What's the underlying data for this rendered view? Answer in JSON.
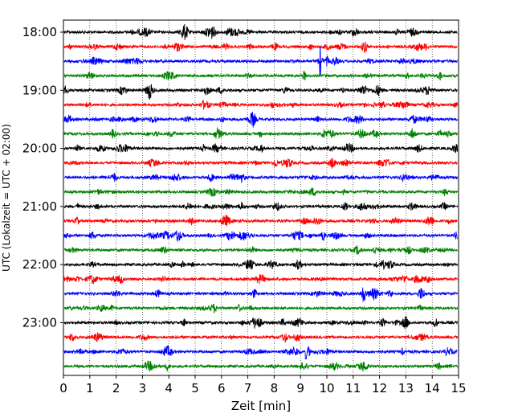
{
  "chart_data": {
    "type": "line",
    "title": "",
    "xlabel": "Zeit  [min]",
    "ylabel": "UTC (Lokalzeit = UTC + 02:00)",
    "xlim": [
      0,
      15
    ],
    "x_ticks": [
      "0",
      "1",
      "2",
      "3",
      "4",
      "5",
      "6",
      "7",
      "8",
      "9",
      "10",
      "11",
      "12",
      "13",
      "14",
      "15"
    ],
    "y_tick_labels": [
      "18:00",
      "19:00",
      "20:00",
      "21:00",
      "22:00",
      "23:00"
    ],
    "trace_start_hour": "18:00",
    "trace_duration_min": 15,
    "trace_count": 24,
    "color_cycle": [
      "#000000",
      "#ff0000",
      "#0000ff",
      "#008000"
    ],
    "grid": "vertical dotted at each minute",
    "legend": "none",
    "notable_events": [
      {
        "trace_start": "18:30",
        "x_min": 9.75,
        "description": "large spike"
      },
      {
        "trace_start": "23:30",
        "x_min": 9.2,
        "description": "small spike"
      }
    ]
  }
}
